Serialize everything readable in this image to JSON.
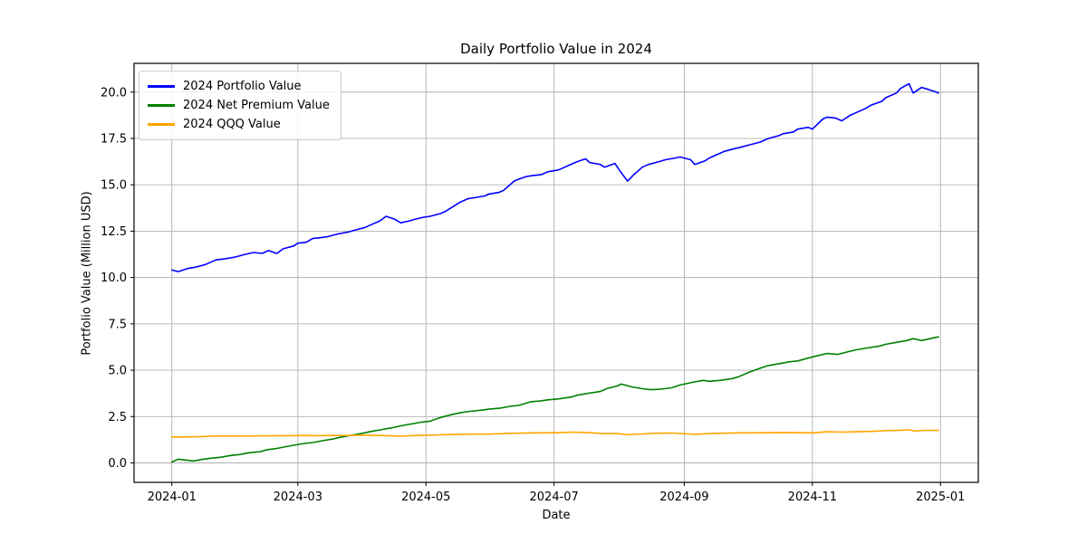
{
  "chart_data": {
    "type": "line",
    "title": "Daily Portfolio Value in 2024",
    "xlabel": "Date",
    "ylabel": "Portfolio Value (Million USD)",
    "grid": true,
    "legend_position": "upper-left",
    "background_color": "#ffffff",
    "grid_color": "#b0b0b0",
    "axis_color": "#000000",
    "legend_border_color": "#cccccc",
    "xtick_labels": [
      "2024-01",
      "2024-03",
      "2024-05",
      "2024-07",
      "2024-09",
      "2024-11",
      "2025-01"
    ],
    "ytick_values": [
      0.0,
      2.5,
      5.0,
      7.5,
      10.0,
      12.5,
      15.0,
      17.5,
      20.0
    ],
    "xlim_days_from_2024_01_01": [
      -18,
      384
    ],
    "ylim": [
      -1.05,
      21.55
    ],
    "series": [
      {
        "name": "2024 Portfolio Value",
        "color": "#0000ff",
        "points": [
          [
            "2024-01-01",
            10.4
          ],
          [
            "2024-01-04",
            10.32
          ],
          [
            "2024-01-09",
            10.5
          ],
          [
            "2024-01-12",
            10.55
          ],
          [
            "2024-01-17",
            10.7
          ],
          [
            "2024-01-22",
            10.95
          ],
          [
            "2024-01-26",
            11.0
          ],
          [
            "2024-01-31",
            11.1
          ],
          [
            "2024-02-05",
            11.25
          ],
          [
            "2024-02-09",
            11.35
          ],
          [
            "2024-02-13",
            11.3
          ],
          [
            "2024-02-16",
            11.45
          ],
          [
            "2024-02-20",
            11.3
          ],
          [
            "2024-02-23",
            11.55
          ],
          [
            "2024-02-28",
            11.7
          ],
          [
            "2024-03-01",
            11.85
          ],
          [
            "2024-03-05",
            11.9
          ],
          [
            "2024-03-08",
            12.1
          ],
          [
            "2024-03-12",
            12.15
          ],
          [
            "2024-03-15",
            12.2
          ],
          [
            "2024-03-20",
            12.35
          ],
          [
            "2024-03-25",
            12.45
          ],
          [
            "2024-03-28",
            12.55
          ],
          [
            "2024-04-02",
            12.7
          ],
          [
            "2024-04-05",
            12.85
          ],
          [
            "2024-04-09",
            13.05
          ],
          [
            "2024-04-12",
            13.3
          ],
          [
            "2024-04-16",
            13.15
          ],
          [
            "2024-04-19",
            12.95
          ],
          [
            "2024-04-23",
            13.05
          ],
          [
            "2024-04-26",
            13.15
          ],
          [
            "2024-04-30",
            13.25
          ],
          [
            "2024-05-03",
            13.3
          ],
          [
            "2024-05-08",
            13.45
          ],
          [
            "2024-05-10",
            13.55
          ],
          [
            "2024-05-15",
            13.9
          ],
          [
            "2024-05-17",
            14.05
          ],
          [
            "2024-05-21",
            14.25
          ],
          [
            "2024-05-24",
            14.3
          ],
          [
            "2024-05-29",
            14.4
          ],
          [
            "2024-05-31",
            14.5
          ],
          [
            "2024-06-05",
            14.6
          ],
          [
            "2024-06-07",
            14.7
          ],
          [
            "2024-06-12",
            15.2
          ],
          [
            "2024-06-14",
            15.3
          ],
          [
            "2024-06-18",
            15.45
          ],
          [
            "2024-06-21",
            15.5
          ],
          [
            "2024-06-25",
            15.55
          ],
          [
            "2024-06-28",
            15.7
          ],
          [
            "2024-07-03",
            15.8
          ],
          [
            "2024-07-05",
            15.9
          ],
          [
            "2024-07-10",
            16.15
          ],
          [
            "2024-07-12",
            16.25
          ],
          [
            "2024-07-16",
            16.4
          ],
          [
            "2024-07-18",
            16.2
          ],
          [
            "2024-07-23",
            16.1
          ],
          [
            "2024-07-25",
            15.95
          ],
          [
            "2024-07-30",
            16.15
          ],
          [
            "2024-08-01",
            15.8
          ],
          [
            "2024-08-05",
            15.2
          ],
          [
            "2024-08-08",
            15.55
          ],
          [
            "2024-08-12",
            15.95
          ],
          [
            "2024-08-15",
            16.1
          ],
          [
            "2024-08-20",
            16.25
          ],
          [
            "2024-08-23",
            16.35
          ],
          [
            "2024-08-28",
            16.45
          ],
          [
            "2024-08-30",
            16.5
          ],
          [
            "2024-09-04",
            16.35
          ],
          [
            "2024-09-06",
            16.1
          ],
          [
            "2024-09-11",
            16.3
          ],
          [
            "2024-09-13",
            16.45
          ],
          [
            "2024-09-18",
            16.7
          ],
          [
            "2024-09-20",
            16.8
          ],
          [
            "2024-09-25",
            16.95
          ],
          [
            "2024-09-27",
            17.0
          ],
          [
            "2024-10-02",
            17.15
          ],
          [
            "2024-10-07",
            17.3
          ],
          [
            "2024-10-11",
            17.5
          ],
          [
            "2024-10-16",
            17.65
          ],
          [
            "2024-10-18",
            17.75
          ],
          [
            "2024-10-23",
            17.85
          ],
          [
            "2024-10-25",
            18.0
          ],
          [
            "2024-10-30",
            18.1
          ],
          [
            "2024-11-01",
            18.0
          ],
          [
            "2024-11-06",
            18.55
          ],
          [
            "2024-11-08",
            18.65
          ],
          [
            "2024-11-12",
            18.6
          ],
          [
            "2024-11-15",
            18.45
          ],
          [
            "2024-11-19",
            18.75
          ],
          [
            "2024-11-22",
            18.9
          ],
          [
            "2024-11-26",
            19.1
          ],
          [
            "2024-11-29",
            19.3
          ],
          [
            "2024-12-04",
            19.5
          ],
          [
            "2024-12-06",
            19.7
          ],
          [
            "2024-12-11",
            19.95
          ],
          [
            "2024-12-13",
            20.2
          ],
          [
            "2024-12-17",
            20.45
          ],
          [
            "2024-12-19",
            19.95
          ],
          [
            "2024-12-23",
            20.25
          ],
          [
            "2024-12-26",
            20.15
          ],
          [
            "2024-12-30",
            20.0
          ],
          [
            "2024-12-31",
            19.95
          ]
        ]
      },
      {
        "name": "2024 Net Premium Value",
        "color": "#008000",
        "points": [
          [
            "2024-01-01",
            0.05
          ],
          [
            "2024-01-04",
            0.2
          ],
          [
            "2024-01-08",
            0.15
          ],
          [
            "2024-01-11",
            0.1
          ],
          [
            "2024-01-16",
            0.2
          ],
          [
            "2024-01-19",
            0.25
          ],
          [
            "2024-01-24",
            0.3
          ],
          [
            "2024-01-29",
            0.4
          ],
          [
            "2024-02-02",
            0.45
          ],
          [
            "2024-02-07",
            0.55
          ],
          [
            "2024-02-12",
            0.6
          ],
          [
            "2024-02-15",
            0.7
          ],
          [
            "2024-02-20",
            0.78
          ],
          [
            "2024-02-23",
            0.85
          ],
          [
            "2024-02-28",
            0.95
          ],
          [
            "2024-03-04",
            1.05
          ],
          [
            "2024-03-08",
            1.1
          ],
          [
            "2024-03-13",
            1.2
          ],
          [
            "2024-03-18",
            1.3
          ],
          [
            "2024-03-22",
            1.4
          ],
          [
            "2024-03-27",
            1.5
          ],
          [
            "2024-04-01",
            1.6
          ],
          [
            "2024-04-05",
            1.7
          ],
          [
            "2024-04-10",
            1.8
          ],
          [
            "2024-04-15",
            1.9
          ],
          [
            "2024-04-19",
            2.0
          ],
          [
            "2024-04-24",
            2.1
          ],
          [
            "2024-04-29",
            2.2
          ],
          [
            "2024-05-03",
            2.25
          ],
          [
            "2024-05-08",
            2.45
          ],
          [
            "2024-05-13",
            2.6
          ],
          [
            "2024-05-17",
            2.7
          ],
          [
            "2024-05-22",
            2.78
          ],
          [
            "2024-05-28",
            2.85
          ],
          [
            "2024-05-31",
            2.9
          ],
          [
            "2024-06-05",
            2.95
          ],
          [
            "2024-06-10",
            3.05
          ],
          [
            "2024-06-14",
            3.1
          ],
          [
            "2024-06-20",
            3.3
          ],
          [
            "2024-06-25",
            3.35
          ],
          [
            "2024-06-28",
            3.4
          ],
          [
            "2024-07-03",
            3.45
          ],
          [
            "2024-07-09",
            3.55
          ],
          [
            "2024-07-12",
            3.65
          ],
          [
            "2024-07-17",
            3.75
          ],
          [
            "2024-07-23",
            3.85
          ],
          [
            "2024-07-26",
            4.0
          ],
          [
            "2024-07-31",
            4.15
          ],
          [
            "2024-08-02",
            4.25
          ],
          [
            "2024-08-07",
            4.1
          ],
          [
            "2024-08-12",
            4.0
          ],
          [
            "2024-08-16",
            3.95
          ],
          [
            "2024-08-21",
            3.98
          ],
          [
            "2024-08-26",
            4.05
          ],
          [
            "2024-08-30",
            4.2
          ],
          [
            "2024-09-05",
            4.35
          ],
          [
            "2024-09-10",
            4.45
          ],
          [
            "2024-09-13",
            4.4
          ],
          [
            "2024-09-18",
            4.45
          ],
          [
            "2024-09-24",
            4.55
          ],
          [
            "2024-09-27",
            4.65
          ],
          [
            "2024-10-02",
            4.9
          ],
          [
            "2024-10-07",
            5.1
          ],
          [
            "2024-10-11",
            5.25
          ],
          [
            "2024-10-16",
            5.35
          ],
          [
            "2024-10-21",
            5.45
          ],
          [
            "2024-10-25",
            5.5
          ],
          [
            "2024-10-30",
            5.65
          ],
          [
            "2024-11-04",
            5.8
          ],
          [
            "2024-11-08",
            5.9
          ],
          [
            "2024-11-13",
            5.85
          ],
          [
            "2024-11-18",
            6.0
          ],
          [
            "2024-11-22",
            6.1
          ],
          [
            "2024-11-27",
            6.2
          ],
          [
            "2024-12-03",
            6.3
          ],
          [
            "2024-12-06",
            6.4
          ],
          [
            "2024-12-11",
            6.5
          ],
          [
            "2024-12-16",
            6.6
          ],
          [
            "2024-12-19",
            6.7
          ],
          [
            "2024-12-23",
            6.6
          ],
          [
            "2024-12-27",
            6.7
          ],
          [
            "2024-12-31",
            6.8
          ]
        ]
      },
      {
        "name": "2024 QQQ Value",
        "color": "#ffa500",
        "points": [
          [
            "2024-01-01",
            1.4
          ],
          [
            "2024-01-08",
            1.4
          ],
          [
            "2024-01-15",
            1.42
          ],
          [
            "2024-01-22",
            1.45
          ],
          [
            "2024-01-29",
            1.45
          ],
          [
            "2024-02-05",
            1.45
          ],
          [
            "2024-02-12",
            1.46
          ],
          [
            "2024-02-19",
            1.47
          ],
          [
            "2024-02-26",
            1.47
          ],
          [
            "2024-03-04",
            1.48
          ],
          [
            "2024-03-11",
            1.47
          ],
          [
            "2024-03-18",
            1.48
          ],
          [
            "2024-03-25",
            1.48
          ],
          [
            "2024-04-01",
            1.5
          ],
          [
            "2024-04-08",
            1.48
          ],
          [
            "2024-04-15",
            1.46
          ],
          [
            "2024-04-19",
            1.44
          ],
          [
            "2024-04-26",
            1.48
          ],
          [
            "2024-05-03",
            1.5
          ],
          [
            "2024-05-10",
            1.52
          ],
          [
            "2024-05-17",
            1.54
          ],
          [
            "2024-05-24",
            1.55
          ],
          [
            "2024-05-31",
            1.55
          ],
          [
            "2024-06-07",
            1.58
          ],
          [
            "2024-06-14",
            1.6
          ],
          [
            "2024-06-21",
            1.62
          ],
          [
            "2024-06-28",
            1.62
          ],
          [
            "2024-07-05",
            1.64
          ],
          [
            "2024-07-10",
            1.66
          ],
          [
            "2024-07-17",
            1.64
          ],
          [
            "2024-07-24",
            1.58
          ],
          [
            "2024-07-31",
            1.58
          ],
          [
            "2024-08-05",
            1.52
          ],
          [
            "2024-08-12",
            1.56
          ],
          [
            "2024-08-19",
            1.6
          ],
          [
            "2024-08-26",
            1.61
          ],
          [
            "2024-09-03",
            1.56
          ],
          [
            "2024-09-06",
            1.54
          ],
          [
            "2024-09-13",
            1.58
          ],
          [
            "2024-09-20",
            1.6
          ],
          [
            "2024-09-27",
            1.62
          ],
          [
            "2024-10-04",
            1.62
          ],
          [
            "2024-10-11",
            1.63
          ],
          [
            "2024-10-18",
            1.64
          ],
          [
            "2024-10-25",
            1.63
          ],
          [
            "2024-11-01",
            1.62
          ],
          [
            "2024-11-08",
            1.68
          ],
          [
            "2024-11-15",
            1.66
          ],
          [
            "2024-11-22",
            1.68
          ],
          [
            "2024-11-29",
            1.7
          ],
          [
            "2024-12-06",
            1.74
          ],
          [
            "2024-12-13",
            1.76
          ],
          [
            "2024-12-17",
            1.78
          ],
          [
            "2024-12-20",
            1.72
          ],
          [
            "2024-12-24",
            1.75
          ],
          [
            "2024-12-31",
            1.75
          ]
        ]
      }
    ]
  }
}
